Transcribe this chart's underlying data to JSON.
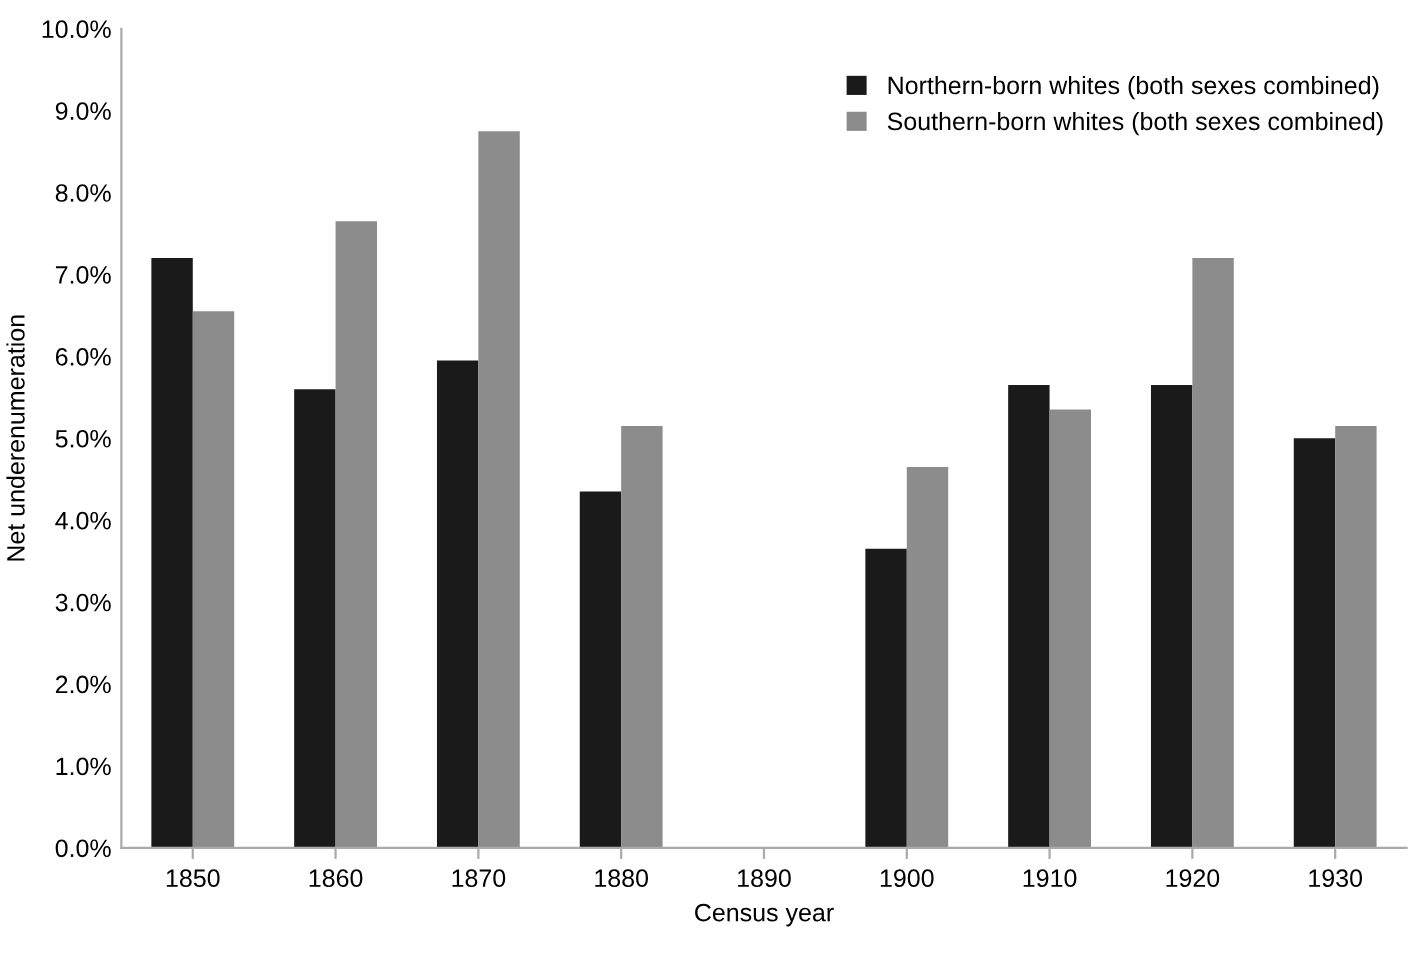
{
  "chart_data": {
    "type": "bar",
    "xlabel": "Census year",
    "ylabel": "Net underenumeration",
    "categories": [
      "1850",
      "1860",
      "1870",
      "1880",
      "1890",
      "1900",
      "1910",
      "1920",
      "1930"
    ],
    "series": [
      {
        "name": "Northern-born whites (both sexes combined)",
        "color": "#1a1a1a",
        "values": [
          7.2,
          5.6,
          5.95,
          4.35,
          null,
          3.65,
          5.65,
          5.65,
          5.0
        ]
      },
      {
        "name": "Southern-born whites (both sexes combined)",
        "color": "#8c8c8c",
        "values": [
          6.55,
          7.65,
          8.75,
          5.15,
          null,
          4.65,
          5.35,
          7.2,
          5.15
        ]
      }
    ],
    "ylim": [
      0,
      10
    ],
    "yticks": [
      {
        "value": 0,
        "label": "0.0%"
      },
      {
        "value": 1,
        "label": "1.0%"
      },
      {
        "value": 2,
        "label": "2.0%"
      },
      {
        "value": 3,
        "label": "3.0%"
      },
      {
        "value": 4,
        "label": "4.0%"
      },
      {
        "value": 5,
        "label": "5.0%"
      },
      {
        "value": 6,
        "label": "6.0%"
      },
      {
        "value": 7,
        "label": "7.0%"
      },
      {
        "value": 8,
        "label": "8.0%"
      },
      {
        "value": 9,
        "label": "9.0%"
      },
      {
        "value": 10,
        "label": "10.0%"
      }
    ],
    "grid": false,
    "legend": "top right"
  }
}
